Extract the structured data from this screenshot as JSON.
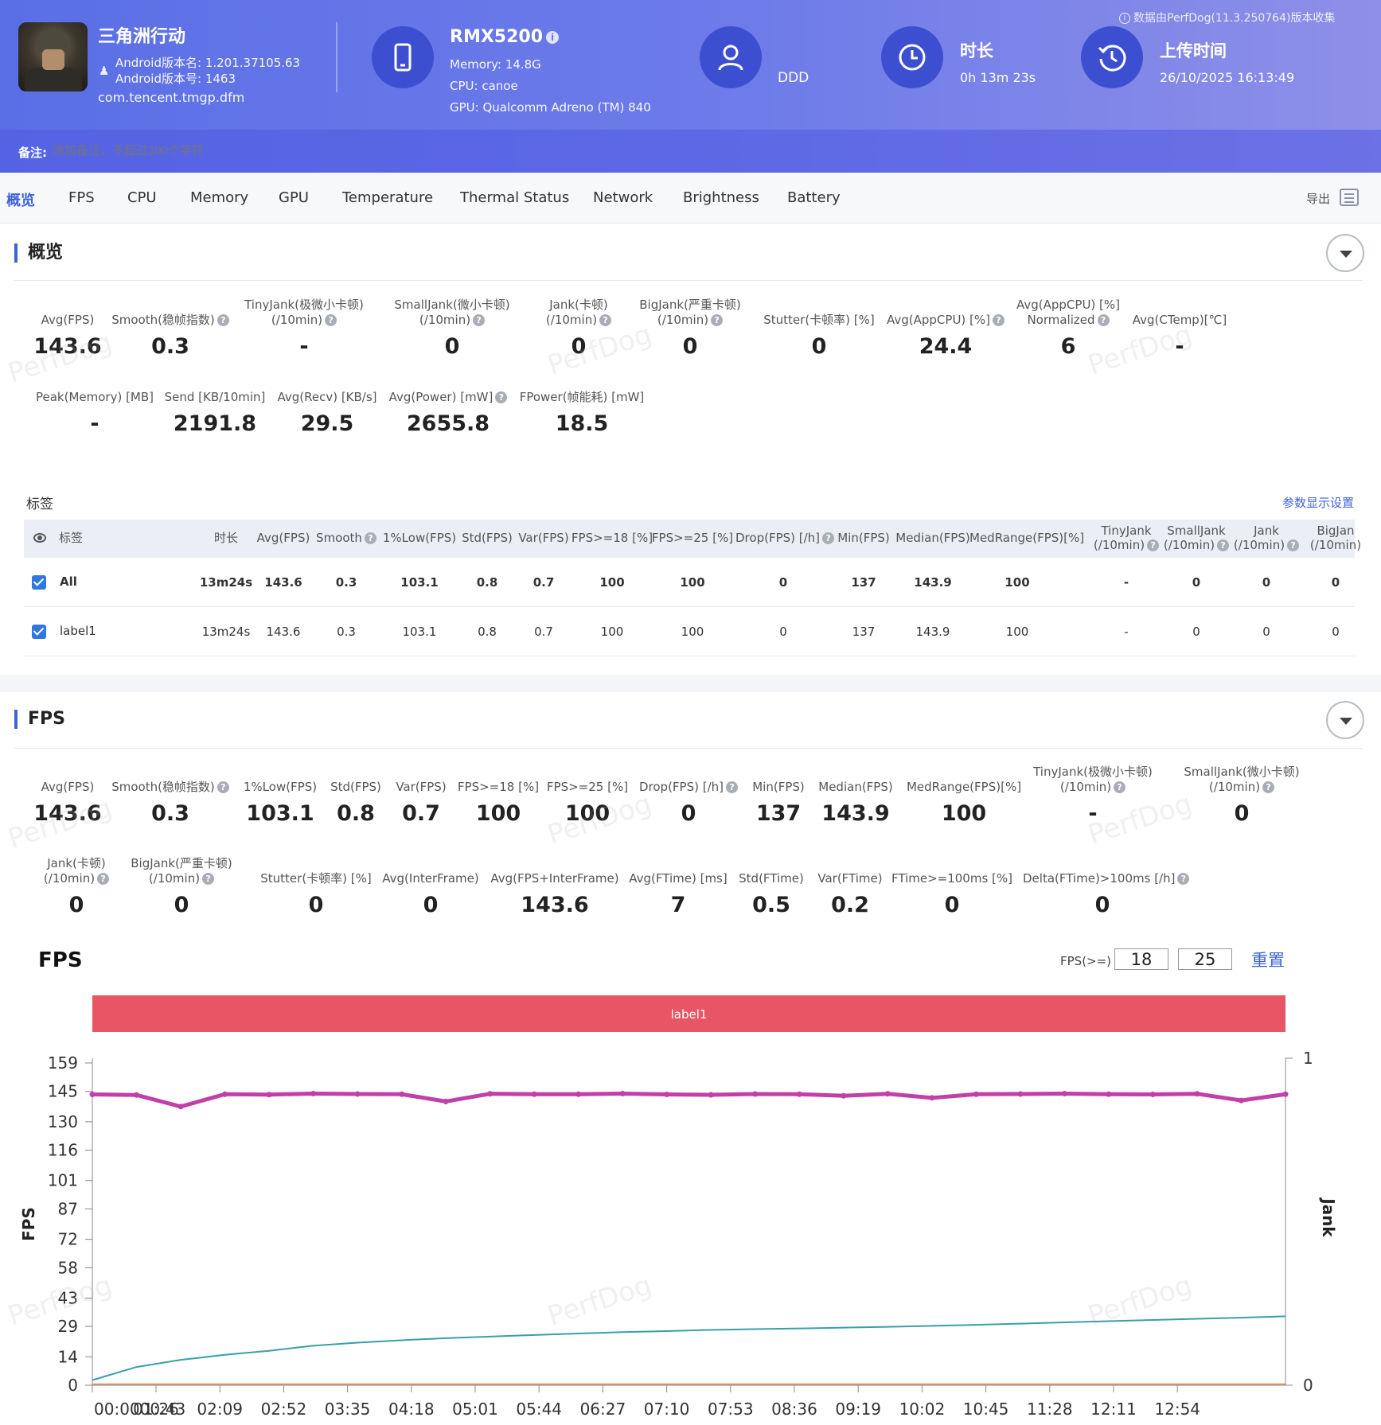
{
  "header": {
    "app_name": "三角洲行动",
    "android_version_name": "Android版本名: 1.201.37105.63",
    "android_version_code": "Android版本号: 1463",
    "package": "com.tencent.tmgp.dfm",
    "device": "RMX5200",
    "memory": "Memory: 14.8G",
    "cpu": "CPU: canoe",
    "gpu": "GPU: Qualcomm Adreno (TM) 840",
    "user": "DDD",
    "duration_title": "时长",
    "duration_value": "0h 13m 23s",
    "upload_title": "上传时间",
    "upload_value": "26/10/2025 16:13:49",
    "collected_by": "数据由PerfDog(11.3.250764)版本收集",
    "note_label": "备注:",
    "note_placeholder": "添加备注，不超过200个字符",
    "accent": "#3d4fd1"
  },
  "tabs": [
    "概览",
    "FPS",
    "CPU",
    "Memory",
    "GPU",
    "Temperature",
    "Thermal Status",
    "Network",
    "Brightness",
    "Battery"
  ],
  "active_tab": "概览",
  "export_label": "导出",
  "overview": {
    "title": "概览",
    "metrics_row1": [
      {
        "l1": "",
        "l2": "Avg(FPS)",
        "q": false,
        "v": "143.6"
      },
      {
        "l1": "",
        "l2": "Smooth(稳帧指数)",
        "q": true,
        "v": "0.3"
      },
      {
        "l1": "TinyJank(极微小卡顿)",
        "l2": "(/10min)",
        "q": true,
        "v": "-"
      },
      {
        "l1": "SmallJank(微小卡顿)",
        "l2": "(/10min)",
        "q": true,
        "v": "0"
      },
      {
        "l1": "Jank(卡顿)",
        "l2": "(/10min)",
        "q": true,
        "v": "0"
      },
      {
        "l1": "BigJank(严重卡顿)",
        "l2": "(/10min)",
        "q": true,
        "v": "0"
      },
      {
        "l1": "",
        "l2": "Stutter(卡顿率) [%]",
        "q": false,
        "v": "0"
      },
      {
        "l1": "",
        "l2": "Avg(AppCPU) [%]",
        "q": true,
        "v": "24.4"
      },
      {
        "l1": "Avg(AppCPU) [%]",
        "l2": "Normalized",
        "q": true,
        "v": "6"
      },
      {
        "l1": "",
        "l2": "Avg(CTemp)[℃]",
        "q": false,
        "v": "-"
      }
    ],
    "metrics_row2": [
      {
        "l1": "",
        "l2": "Peak(Memory) [MB]",
        "q": false,
        "v": "-"
      },
      {
        "l1": "",
        "l2": "Send [KB/10min]",
        "q": false,
        "v": "2191.8"
      },
      {
        "l1": "",
        "l2": "Avg(Recv) [KB/s]",
        "q": false,
        "v": "29.5"
      },
      {
        "l1": "",
        "l2": "Avg(Power) [mW]",
        "q": true,
        "v": "2655.8"
      },
      {
        "l1": "",
        "l2": "FPower(帧能耗) [mW]",
        "q": false,
        "v": "18.5"
      }
    ]
  },
  "tags": {
    "title": "标签",
    "param_link": "参数显示设置",
    "headers": [
      {
        "l1": "",
        "l2": "标签",
        "q": false
      },
      {
        "l1": "",
        "l2": "时长",
        "q": false
      },
      {
        "l1": "",
        "l2": "Avg(FPS)",
        "q": false
      },
      {
        "l1": "",
        "l2": "Smooth",
        "q": true
      },
      {
        "l1": "",
        "l2": "1%Low(FPS)",
        "q": false
      },
      {
        "l1": "",
        "l2": "Std(FPS)",
        "q": false
      },
      {
        "l1": "",
        "l2": "Var(FPS)",
        "q": false
      },
      {
        "l1": "",
        "l2": "FPS>=18 [%]",
        "q": false
      },
      {
        "l1": "",
        "l2": "FPS>=25 [%]",
        "q": false
      },
      {
        "l1": "",
        "l2": "Drop(FPS) [/h]",
        "q": true
      },
      {
        "l1": "",
        "l2": "Min(FPS)",
        "q": false
      },
      {
        "l1": "",
        "l2": "Median(FPS)",
        "q": false
      },
      {
        "l1": "",
        "l2": "MedRange(FPS)[%]",
        "q": false
      },
      {
        "l1": "TinyJank",
        "l2": "(/10min)",
        "q": true
      },
      {
        "l1": "SmallJank",
        "l2": "(/10min)",
        "q": true
      },
      {
        "l1": "Jank",
        "l2": "(/10min)",
        "q": true
      },
      {
        "l1": "BigJan",
        "l2": "(/10min)",
        "q": false
      }
    ],
    "rows": [
      {
        "name": "All",
        "bold": true,
        "cells": [
          "13m24s",
          "143.6",
          "0.3",
          "103.1",
          "0.8",
          "0.7",
          "100",
          "100",
          "0",
          "137",
          "143.9",
          "100",
          "-",
          "0",
          "0",
          "0"
        ]
      },
      {
        "name": "label1",
        "bold": false,
        "cells": [
          "13m24s",
          "143.6",
          "0.3",
          "103.1",
          "0.8",
          "0.7",
          "100",
          "100",
          "0",
          "137",
          "143.9",
          "100",
          "-",
          "0",
          "0",
          "0"
        ]
      }
    ]
  },
  "fps_section": {
    "title": "FPS",
    "metrics_row1": [
      {
        "l1": "",
        "l2": "Avg(FPS)",
        "q": false,
        "v": "143.6"
      },
      {
        "l1": "",
        "l2": "Smooth(稳帧指数)",
        "q": true,
        "v": "0.3"
      },
      {
        "l1": "",
        "l2": "1%Low(FPS)",
        "q": false,
        "v": "103.1"
      },
      {
        "l1": "",
        "l2": "Std(FPS)",
        "q": false,
        "v": "0.8"
      },
      {
        "l1": "",
        "l2": "Var(FPS)",
        "q": false,
        "v": "0.7"
      },
      {
        "l1": "",
        "l2": "FPS>=18 [%]",
        "q": false,
        "v": "100"
      },
      {
        "l1": "",
        "l2": "FPS>=25 [%]",
        "q": false,
        "v": "100"
      },
      {
        "l1": "",
        "l2": "Drop(FPS) [/h]",
        "q": true,
        "v": "0"
      },
      {
        "l1": "",
        "l2": "Min(FPS)",
        "q": false,
        "v": "137"
      },
      {
        "l1": "",
        "l2": "Median(FPS)",
        "q": false,
        "v": "143.9"
      },
      {
        "l1": "",
        "l2": "MedRange(FPS)[%]",
        "q": false,
        "v": "100"
      },
      {
        "l1": "TinyJank(极微小卡顿)",
        "l2": "(/10min)",
        "q": true,
        "v": "-"
      },
      {
        "l1": "SmallJank(微小卡顿)",
        "l2": "(/10min)",
        "q": true,
        "v": "0"
      }
    ],
    "metrics_row2": [
      {
        "l1": "Jank(卡顿)",
        "l2": "(/10min)",
        "q": true,
        "v": "0"
      },
      {
        "l1": "BigJank(严重卡顿)",
        "l2": "(/10min)",
        "q": true,
        "v": "0"
      },
      {
        "l1": "",
        "l2": "Stutter(卡顿率) [%]",
        "q": false,
        "v": "0"
      },
      {
        "l1": "",
        "l2": "Avg(InterFrame)",
        "q": false,
        "v": "0"
      },
      {
        "l1": "",
        "l2": "Avg(FPS+InterFrame)",
        "q": false,
        "v": "143.6"
      },
      {
        "l1": "",
        "l2": "Avg(FTime) [ms]",
        "q": false,
        "v": "7"
      },
      {
        "l1": "",
        "l2": "Std(FTime)",
        "q": false,
        "v": "0.5"
      },
      {
        "l1": "",
        "l2": "Var(FTime)",
        "q": false,
        "v": "0.2"
      },
      {
        "l1": "",
        "l2": "FTime>=100ms [%]",
        "q": false,
        "v": "0"
      },
      {
        "l1": "",
        "l2": "Delta(FTime)>100ms [/h]",
        "q": true,
        "v": "0"
      }
    ],
    "chart_title": "FPS",
    "fps_ge_label": "FPS(>=)",
    "threshold1": "18",
    "threshold2": "25",
    "reset_label": "重置"
  },
  "watermark": "PerfDog",
  "chart_data": {
    "type": "line",
    "ylabel": "FPS",
    "y2label": "Jank",
    "yticks": [
      "0",
      "14",
      "29",
      "43",
      "58",
      "72",
      "87",
      "101",
      "116",
      "130",
      "145",
      "159"
    ],
    "ylim": [
      0,
      159
    ],
    "y2ticks": [
      "0",
      "1"
    ],
    "y2lim": [
      0,
      1
    ],
    "xticks": [
      "00:0000:43",
      "01:26",
      "02:09",
      "02:52",
      "03:35",
      "04:18",
      "05:01",
      "05:44",
      "06:27",
      "07:10",
      "07:53",
      "08:36",
      "09:19",
      "10:02",
      "10:45",
      "11:28",
      "12:11",
      "12:54"
    ],
    "label_band": "label1",
    "label_band_color": "#e85565",
    "series": [
      {
        "values": [
          143.5,
          143.2,
          137.5,
          143.6,
          143.4,
          143.9,
          143.7,
          143.6,
          140.0,
          143.8,
          143.6,
          143.6,
          143.9,
          143.5,
          143.3,
          143.7,
          143.6,
          142.8,
          143.8,
          141.8,
          143.6,
          143.7,
          143.9,
          143.6,
          143.5,
          143.8,
          140.5,
          143.6
        ],
        "color": "#c23fa8"
      },
      {
        "values": [
          2.5,
          9.0,
          12.5,
          15.0,
          17.0,
          19.5,
          21.0,
          22.2,
          23.2,
          24.0,
          24.8,
          25.5,
          26.2,
          26.7,
          27.3,
          27.7,
          28.0,
          28.4,
          28.8,
          29.3,
          29.8,
          30.4,
          31.0,
          31.6,
          32.2,
          32.8,
          33.3,
          34.0
        ],
        "color": "#3a9fa8"
      },
      {
        "values": [
          0.5,
          0.5,
          0.5,
          0.5,
          0.5,
          0.5,
          0.5,
          0.5,
          0.5,
          0.5,
          0.5,
          0.5,
          0.5,
          0.5,
          0.5,
          0.5,
          0.5,
          0.5,
          0.5,
          0.5,
          0.5,
          0.5,
          0.5,
          0.5,
          0.5,
          0.5,
          0.5,
          0.5
        ],
        "color": "#e09060"
      }
    ]
  }
}
